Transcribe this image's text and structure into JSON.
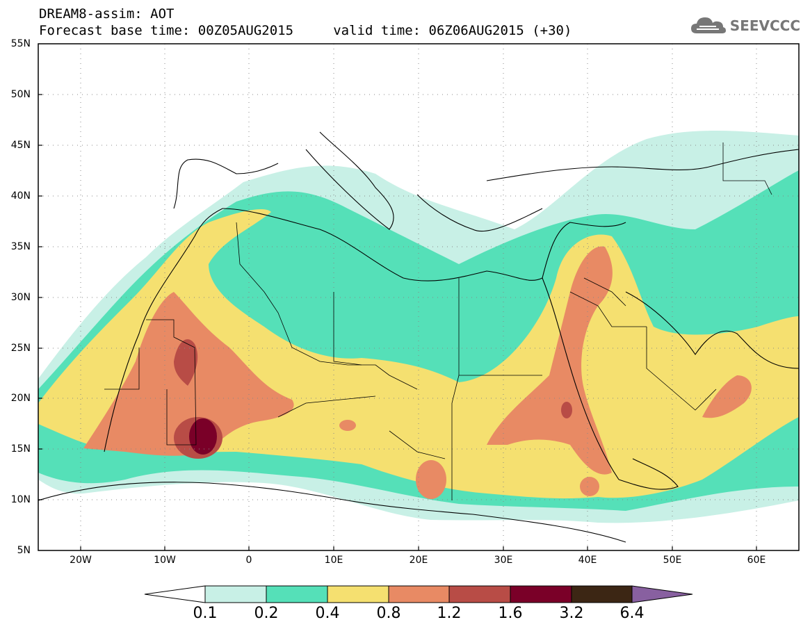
{
  "header": {
    "line1": "DREAM8-assim: AOT",
    "line2": "Forecast base time: 00Z05AUG2015     valid time: 06Z06AUG2015 (+30)"
  },
  "logo": {
    "text": "SEEVCCC",
    "icon": "cloud-icon"
  },
  "map": {
    "lat_labels": [
      "55N",
      "50N",
      "45N",
      "40N",
      "35N",
      "30N",
      "25N",
      "20N",
      "15N",
      "10N",
      "5N"
    ],
    "lon_labels": [
      "20W",
      "10W",
      "0",
      "10E",
      "20E",
      "30E",
      "40E",
      "50E",
      "60E"
    ],
    "lon_range": [
      -25,
      65
    ],
    "lat_range": [
      5,
      55
    ]
  },
  "colorbar": {
    "labels": [
      "0.1",
      "0.2",
      "0.4",
      "0.8",
      "1.2",
      "1.6",
      "3.2",
      "6.4"
    ],
    "colors": [
      "#c8f0e6",
      "#55e0b8",
      "#f5e070",
      "#e88a64",
      "#b84c46",
      "#7a0028",
      "#3c2614",
      "#8860a0"
    ]
  }
}
